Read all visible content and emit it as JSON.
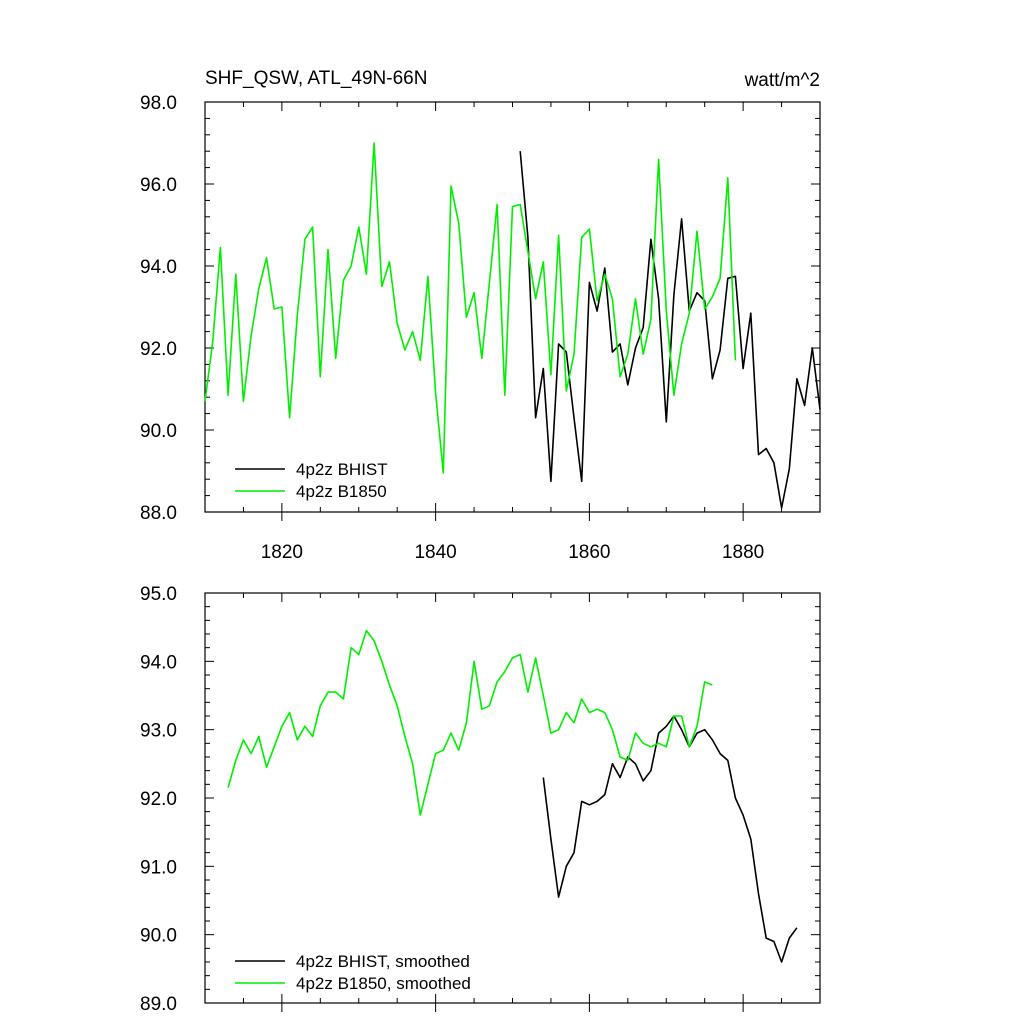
{
  "colors": {
    "bhist": "#000000",
    "b1850": "#00ee00"
  },
  "chart_data": [
    {
      "type": "line",
      "title_left": "SHF_QSW, ATL_49N-66N",
      "title_right": "watt/m^2",
      "xlim": [
        1810,
        1890
      ],
      "ylim": [
        88.0,
        98.0
      ],
      "xticks": [
        1820,
        1840,
        1860,
        1880
      ],
      "xtick_labels": [
        "1820",
        "1840",
        "1860",
        "1880"
      ],
      "yticks": [
        88.0,
        90.0,
        92.0,
        94.0,
        96.0,
        98.0
      ],
      "ytick_labels": [
        "88.0",
        "90.0",
        "92.0",
        "94.0",
        "96.0",
        "98.0"
      ],
      "legend_position": "bottom-left",
      "series": [
        {
          "name": "4p2z BHIST",
          "color": "#000000",
          "x": [
            1851,
            1852,
            1853,
            1854,
            1855,
            1856,
            1857,
            1858,
            1859,
            1860,
            1861,
            1862,
            1863,
            1864,
            1865,
            1866,
            1867,
            1868,
            1869,
            1870,
            1871,
            1872,
            1873,
            1874,
            1875,
            1876,
            1877,
            1878,
            1879,
            1880,
            1881,
            1882,
            1883,
            1884,
            1885,
            1886,
            1887,
            1888,
            1889,
            1890
          ],
          "y": [
            96.8,
            94.7,
            90.3,
            91.5,
            88.75,
            92.1,
            91.9,
            90.3,
            88.75,
            93.6,
            92.9,
            93.95,
            91.9,
            92.1,
            91.1,
            92.0,
            92.5,
            94.65,
            93.2,
            90.2,
            93.3,
            95.15,
            92.9,
            93.35,
            93.15,
            91.25,
            91.95,
            93.7,
            93.75,
            91.5,
            92.85,
            89.4,
            89.55,
            89.2,
            88.1,
            89.05,
            91.25,
            90.6,
            92.0,
            90.5
          ]
        },
        {
          "name": "4p2z B1850",
          "color": "#00ee00",
          "x": [
            1810,
            1811,
            1812,
            1813,
            1814,
            1815,
            1816,
            1817,
            1818,
            1819,
            1820,
            1821,
            1822,
            1823,
            1824,
            1825,
            1826,
            1827,
            1828,
            1829,
            1830,
            1831,
            1832,
            1833,
            1834,
            1835,
            1836,
            1837,
            1838,
            1839,
            1840,
            1841,
            1842,
            1843,
            1844,
            1845,
            1846,
            1847,
            1848,
            1849,
            1850,
            1851,
            1852,
            1853,
            1854,
            1855,
            1856,
            1857,
            1858,
            1859,
            1860,
            1861,
            1862,
            1863,
            1864,
            1865,
            1866,
            1867,
            1868,
            1869,
            1870,
            1871,
            1872,
            1873,
            1874,
            1875,
            1876,
            1877,
            1878,
            1879
          ],
          "y": [
            90.7,
            92.15,
            94.45,
            90.85,
            93.8,
            90.7,
            92.3,
            93.45,
            94.2,
            92.95,
            93.0,
            90.3,
            92.8,
            94.65,
            94.95,
            91.3,
            94.4,
            91.75,
            93.65,
            94.0,
            94.95,
            93.8,
            97.0,
            93.5,
            94.1,
            92.6,
            91.95,
            92.4,
            91.7,
            93.75,
            90.9,
            88.95,
            95.95,
            95.05,
            92.75,
            93.35,
            91.75,
            93.6,
            95.5,
            90.85,
            95.45,
            95.5,
            94.35,
            93.2,
            94.1,
            91.35,
            94.75,
            90.95,
            91.85,
            94.7,
            94.9,
            93.15,
            93.8,
            93.2,
            91.3,
            91.85,
            93.2,
            91.85,
            92.7,
            96.6,
            92.9,
            90.85,
            92.1,
            92.85,
            94.85,
            92.95,
            93.25,
            93.7,
            96.15,
            91.7
          ]
        }
      ]
    },
    {
      "type": "line",
      "title_left": "",
      "title_right": "",
      "xlim": [
        1810,
        1890
      ],
      "ylim": [
        89.0,
        95.0
      ],
      "xticks": [
        1820,
        1840,
        1860,
        1880
      ],
      "xtick_labels": [
        "",
        "",
        "",
        ""
      ],
      "yticks": [
        89.0,
        90.0,
        91.0,
        92.0,
        93.0,
        94.0,
        95.0
      ],
      "ytick_labels": [
        "89.0",
        "90.0",
        "91.0",
        "92.0",
        "93.0",
        "94.0",
        "95.0"
      ],
      "legend_position": "bottom-left",
      "series": [
        {
          "name": "4p2z BHIST, smoothed",
          "color": "#000000",
          "x": [
            1854,
            1855,
            1856,
            1857,
            1858,
            1859,
            1860,
            1861,
            1862,
            1863,
            1864,
            1865,
            1866,
            1867,
            1868,
            1869,
            1870,
            1871,
            1872,
            1873,
            1874,
            1875,
            1876,
            1877,
            1878,
            1879,
            1880,
            1881,
            1882,
            1883,
            1884,
            1885,
            1886,
            1887
          ],
          "y": [
            92.3,
            91.4,
            90.55,
            91.0,
            91.2,
            91.95,
            91.9,
            91.95,
            92.05,
            92.5,
            92.3,
            92.6,
            92.5,
            92.25,
            92.4,
            92.95,
            93.05,
            93.2,
            93.0,
            92.75,
            92.95,
            93.0,
            92.85,
            92.65,
            92.55,
            92.0,
            91.75,
            91.4,
            90.6,
            89.95,
            89.9,
            89.6,
            89.95,
            90.1
          ]
        },
        {
          "name": "4p2z B1850, smoothed",
          "color": "#00ee00",
          "x": [
            1813,
            1814,
            1815,
            1816,
            1817,
            1818,
            1819,
            1820,
            1821,
            1822,
            1823,
            1824,
            1825,
            1826,
            1827,
            1828,
            1829,
            1830,
            1831,
            1832,
            1833,
            1834,
            1835,
            1836,
            1837,
            1838,
            1839,
            1840,
            1841,
            1842,
            1843,
            1844,
            1845,
            1846,
            1847,
            1848,
            1849,
            1850,
            1851,
            1852,
            1853,
            1854,
            1855,
            1856,
            1857,
            1858,
            1859,
            1860,
            1861,
            1862,
            1863,
            1864,
            1865,
            1866,
            1867,
            1868,
            1869,
            1870,
            1871,
            1872,
            1873,
            1874,
            1875,
            1876
          ],
          "y": [
            92.15,
            92.55,
            92.85,
            92.65,
            92.9,
            92.45,
            92.75,
            93.05,
            93.25,
            92.85,
            93.05,
            92.9,
            93.35,
            93.55,
            93.55,
            93.45,
            94.2,
            94.1,
            94.45,
            94.3,
            94.0,
            93.65,
            93.35,
            92.9,
            92.5,
            91.75,
            92.2,
            92.65,
            92.7,
            92.95,
            92.7,
            93.1,
            94.0,
            93.3,
            93.35,
            93.7,
            93.85,
            94.05,
            94.1,
            93.55,
            94.05,
            93.5,
            92.95,
            93.0,
            93.25,
            93.1,
            93.45,
            93.25,
            93.3,
            93.25,
            93.0,
            92.6,
            92.55,
            92.95,
            92.8,
            92.75,
            92.8,
            92.75,
            93.2,
            93.2,
            92.75,
            93.05,
            93.7,
            93.65
          ]
        }
      ]
    }
  ]
}
